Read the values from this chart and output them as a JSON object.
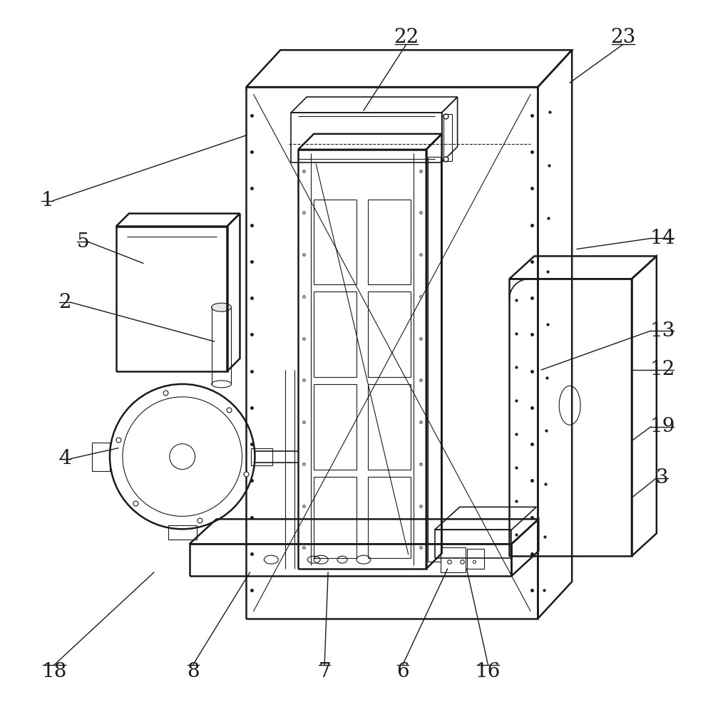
{
  "bg_color": "#ffffff",
  "line_color": "#1a1a1a",
  "lw_thin": 0.8,
  "lw_med": 1.2,
  "lw_thick": 1.8,
  "label_fontsize": 20,
  "fig_width": 10.0,
  "fig_height": 9.99
}
